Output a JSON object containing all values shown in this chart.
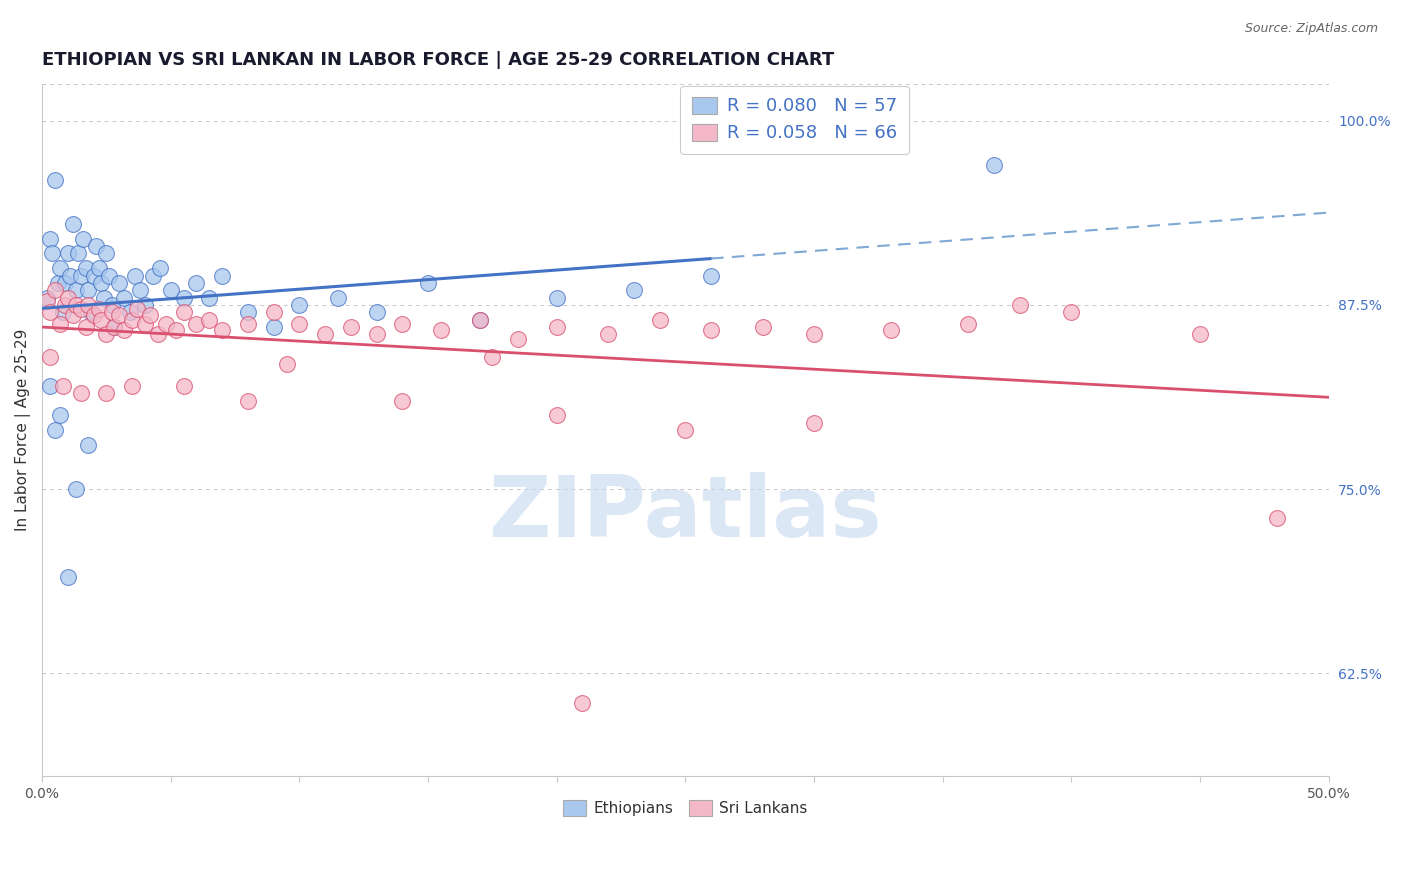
{
  "title": "ETHIOPIAN VS SRI LANKAN IN LABOR FORCE | AGE 25-29 CORRELATION CHART",
  "source": "Source: ZipAtlas.com",
  "ylabel": "In Labor Force | Age 25-29",
  "xlim": [
    0.0,
    0.5
  ],
  "ylim": [
    0.555,
    1.025
  ],
  "xtick_positions": [
    0.0,
    0.05,
    0.1,
    0.15,
    0.2,
    0.25,
    0.3,
    0.35,
    0.4,
    0.45,
    0.5
  ],
  "xtick_labels_shown": {
    "0.0": "0.0%",
    "0.50": "50.0%"
  },
  "yticks": [
    0.625,
    0.75,
    0.875,
    1.0
  ],
  "ytick_labels": [
    "62.5%",
    "75.0%",
    "87.5%",
    "100.0%"
  ],
  "blue_color": "#a8c8ee",
  "pink_color": "#f4b8c8",
  "blue_line_color": "#4472c4",
  "pink_line_color": "#d9506e",
  "blue_dash_color": "#7fa8d4",
  "R_blue": 0.08,
  "N_blue": 57,
  "R_pink": 0.058,
  "N_pink": 66,
  "legend_label_blue": "Ethiopians",
  "legend_label_pink": "Sri Lankans",
  "blue_scatter_x": [
    0.002,
    0.003,
    0.004,
    0.005,
    0.006,
    0.007,
    0.008,
    0.009,
    0.01,
    0.011,
    0.012,
    0.013,
    0.014,
    0.015,
    0.016,
    0.017,
    0.018,
    0.019,
    0.02,
    0.021,
    0.022,
    0.023,
    0.024,
    0.025,
    0.026,
    0.027,
    0.028,
    0.03,
    0.032,
    0.034,
    0.036,
    0.038,
    0.04,
    0.043,
    0.046,
    0.05,
    0.055,
    0.06,
    0.065,
    0.07,
    0.08,
    0.09,
    0.1,
    0.115,
    0.13,
    0.15,
    0.17,
    0.2,
    0.23,
    0.26,
    0.003,
    0.005,
    0.007,
    0.01,
    0.013,
    0.018,
    0.37
  ],
  "blue_scatter_y": [
    0.88,
    0.92,
    0.91,
    0.96,
    0.89,
    0.9,
    0.87,
    0.89,
    0.91,
    0.895,
    0.93,
    0.885,
    0.91,
    0.895,
    0.92,
    0.9,
    0.885,
    0.87,
    0.895,
    0.915,
    0.9,
    0.89,
    0.88,
    0.91,
    0.895,
    0.875,
    0.86,
    0.89,
    0.88,
    0.87,
    0.895,
    0.885,
    0.875,
    0.895,
    0.9,
    0.885,
    0.88,
    0.89,
    0.88,
    0.895,
    0.87,
    0.86,
    0.875,
    0.88,
    0.87,
    0.89,
    0.865,
    0.88,
    0.885,
    0.895,
    0.82,
    0.79,
    0.8,
    0.69,
    0.75,
    0.78,
    0.97
  ],
  "pink_scatter_x": [
    0.002,
    0.003,
    0.005,
    0.007,
    0.009,
    0.01,
    0.012,
    0.013,
    0.015,
    0.017,
    0.018,
    0.02,
    0.022,
    0.023,
    0.025,
    0.027,
    0.028,
    0.03,
    0.032,
    0.035,
    0.037,
    0.04,
    0.042,
    0.045,
    0.048,
    0.052,
    0.055,
    0.06,
    0.065,
    0.07,
    0.08,
    0.09,
    0.1,
    0.11,
    0.12,
    0.13,
    0.14,
    0.155,
    0.17,
    0.185,
    0.2,
    0.22,
    0.24,
    0.26,
    0.28,
    0.3,
    0.33,
    0.36,
    0.4,
    0.45,
    0.003,
    0.008,
    0.015,
    0.025,
    0.035,
    0.055,
    0.08,
    0.14,
    0.2,
    0.3,
    0.38,
    0.48,
    0.25,
    0.175,
    0.095,
    0.21
  ],
  "pink_scatter_y": [
    0.878,
    0.87,
    0.885,
    0.862,
    0.875,
    0.88,
    0.868,
    0.875,
    0.872,
    0.86,
    0.875,
    0.868,
    0.872,
    0.865,
    0.855,
    0.87,
    0.86,
    0.868,
    0.858,
    0.865,
    0.872,
    0.862,
    0.868,
    0.855,
    0.862,
    0.858,
    0.87,
    0.862,
    0.865,
    0.858,
    0.862,
    0.87,
    0.862,
    0.855,
    0.86,
    0.855,
    0.862,
    0.858,
    0.865,
    0.852,
    0.86,
    0.855,
    0.865,
    0.858,
    0.86,
    0.855,
    0.858,
    0.862,
    0.87,
    0.855,
    0.84,
    0.82,
    0.815,
    0.815,
    0.82,
    0.82,
    0.81,
    0.81,
    0.8,
    0.795,
    0.875,
    0.73,
    0.79,
    0.84,
    0.835,
    0.605
  ],
  "watermark_text": "ZIPatlas",
  "watermark_color": "#c5d8f0",
  "bg_color": "#ffffff",
  "grid_color": "#c8c8c8",
  "title_color": "#1a1a2e",
  "axis_label_color": "#333333",
  "tick_label_color_x": "#555555",
  "right_tick_color": "#4472c4",
  "title_fontsize": 13,
  "ylabel_fontsize": 11,
  "source_fontsize": 9,
  "blue_line_end_x": 0.26
}
